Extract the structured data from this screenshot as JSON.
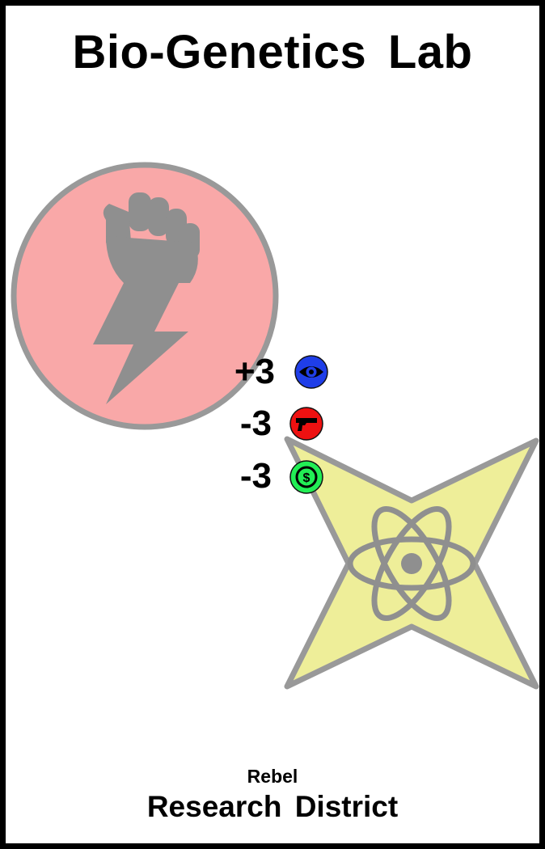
{
  "card": {
    "title": "Bio-Genetics Lab",
    "faction": "Rebel",
    "district": "Research District"
  },
  "emblems": {
    "faction": {
      "icon": "raised-fist-lightning-icon",
      "color": "#f9a8a8"
    },
    "district": {
      "icon": "atom-star-icon",
      "color": "#eeee99"
    }
  },
  "stats": [
    {
      "value": "+3",
      "icon": "eye-icon",
      "color": "#1f3ee8"
    },
    {
      "value": "-3",
      "icon": "pistol-icon",
      "color": "#ee1111"
    },
    {
      "value": "-3",
      "icon": "dollar-coin-icon",
      "color": "#22ee55"
    }
  ]
}
